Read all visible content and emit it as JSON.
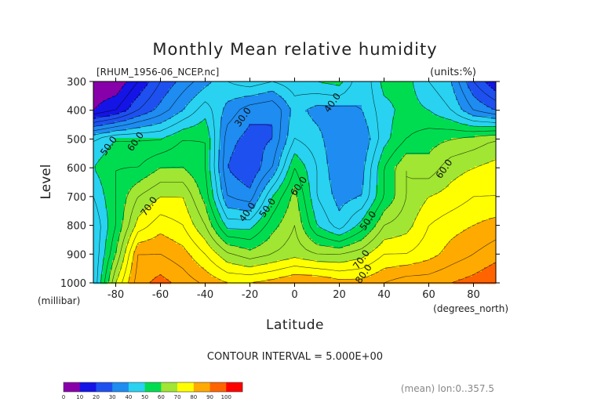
{
  "chart_data": {
    "type": "heatmap",
    "subtype": "filled-contour",
    "title": "Monthly Mean relative humidity",
    "file_label": "[RHUM_1956-06_NCEP.nc]",
    "units_label": "(units:%)",
    "xlabel": "Latitude",
    "x_units": "(degrees_north)",
    "ylabel": "Level",
    "y_units": "(millibar)",
    "xlim": [
      -90,
      90
    ],
    "ylim": [
      1000,
      300
    ],
    "x_ticks": [
      -80,
      -60,
      -40,
      -20,
      0,
      20,
      40,
      60,
      80
    ],
    "y_ticks": [
      300,
      400,
      500,
      600,
      700,
      800,
      900,
      1000
    ],
    "contour_interval_text": "CONTOUR INTERVAL = 5.000E+00",
    "contour_interval": 5,
    "footer_note": "(mean) lon:0..357.5",
    "colorbar": {
      "levels": [
        0,
        10,
        20,
        30,
        40,
        50,
        60,
        70,
        80,
        90,
        100
      ],
      "colors": [
        "#8800aa",
        "#1414e6",
        "#1e50f0",
        "#1e8cf0",
        "#28d2f0",
        "#00dc50",
        "#a0e632",
        "#ffff00",
        "#ffaa00",
        "#ff6400",
        "#ff0000"
      ]
    },
    "contour_labels": [
      {
        "text": "30.0",
        "lat": -22,
        "lev": 430
      },
      {
        "text": "40.0",
        "lat": 18,
        "lev": 380
      },
      {
        "text": "50.0",
        "lat": -82,
        "lev": 530
      },
      {
        "text": "60.0",
        "lat": -70,
        "lev": 515
      },
      {
        "text": "70.0",
        "lat": -64,
        "lev": 740
      },
      {
        "text": "40.0",
        "lat": -20,
        "lev": 760
      },
      {
        "text": "50.0",
        "lat": -11,
        "lev": 745
      },
      {
        "text": "60.0",
        "lat": 3,
        "lev": 670
      },
      {
        "text": "50.0",
        "lat": 34,
        "lev": 790
      },
      {
        "text": "60.0",
        "lat": 68,
        "lev": 610
      },
      {
        "text": "70.0",
        "lat": 31,
        "lev": 925
      },
      {
        "text": "80.0",
        "lat": 32,
        "lev": 975
      }
    ],
    "grid_lat": [
      -90,
      -80,
      -70,
      -60,
      -50,
      -40,
      -30,
      -20,
      -10,
      0,
      10,
      20,
      30,
      40,
      50,
      60,
      70,
      80,
      90
    ],
    "grid_lev": [
      300,
      400,
      500,
      600,
      700,
      800,
      900,
      1000
    ],
    "values": [
      [
        5,
        5,
        15,
        25,
        32,
        38,
        45,
        48,
        45,
        48,
        50,
        52,
        40,
        52,
        52,
        45,
        40,
        25,
        15
      ],
      [
        10,
        15,
        25,
        32,
        40,
        48,
        38,
        32,
        30,
        42,
        38,
        38,
        40,
        48,
        52,
        50,
        45,
        35,
        30
      ],
      [
        45,
        50,
        50,
        50,
        55,
        55,
        32,
        28,
        30,
        45,
        42,
        35,
        35,
        48,
        55,
        58,
        60,
        62,
        65
      ],
      [
        50,
        55,
        55,
        60,
        60,
        55,
        30,
        25,
        35,
        55,
        45,
        35,
        38,
        55,
        65,
        62,
        68,
        70,
        72
      ],
      [
        45,
        55,
        65,
        70,
        70,
        58,
        35,
        32,
        50,
        62,
        45,
        38,
        40,
        55,
        65,
        70,
        72,
        75,
        75
      ],
      [
        40,
        55,
        72,
        78,
        75,
        65,
        48,
        48,
        58,
        65,
        50,
        42,
        52,
        65,
        68,
        75,
        78,
        80,
        82
      ],
      [
        40,
        60,
        85,
        85,
        82,
        75,
        66,
        62,
        65,
        68,
        65,
        65,
        68,
        75,
        75,
        78,
        82,
        85,
        88
      ],
      [
        40,
        70,
        88,
        92,
        88,
        84,
        80,
        80,
        82,
        85,
        85,
        82,
        82,
        85,
        88,
        88,
        90,
        92,
        95
      ]
    ]
  }
}
